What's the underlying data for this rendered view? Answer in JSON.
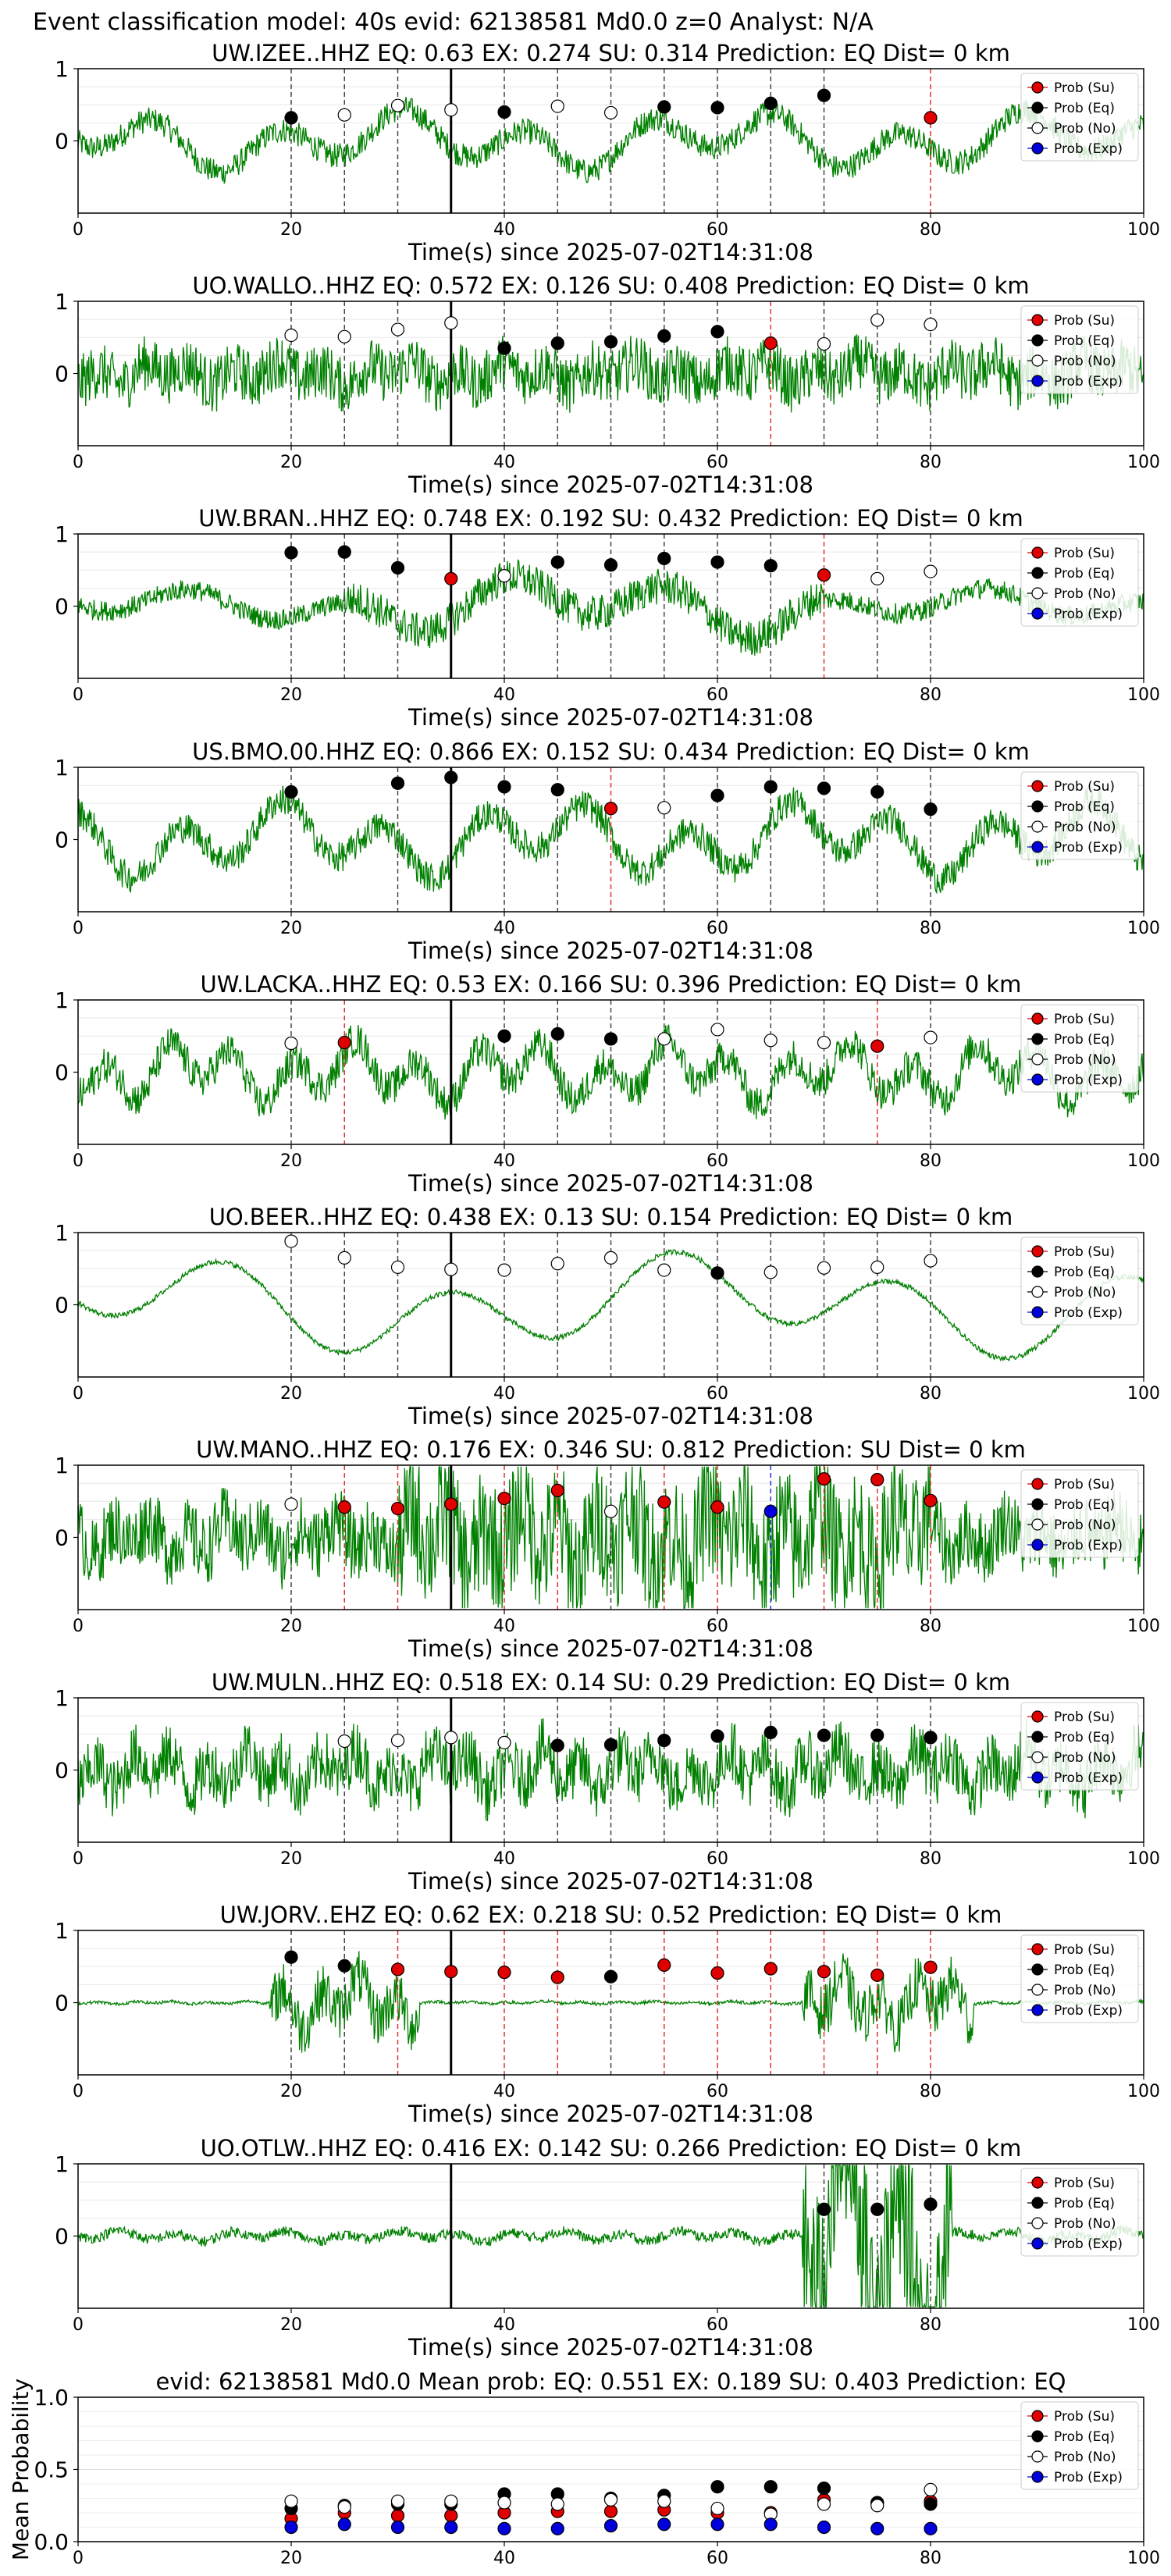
{
  "figure_title": "Event classification model: 40s evid: 62138581 Md0.0 z=0 Analyst: N/A",
  "shared": {
    "xlabel": "Time(s) since 2025-07-02T14:31:08",
    "xticks": [
      0,
      20,
      40,
      60,
      80,
      100
    ],
    "yticks": [
      0,
      1
    ],
    "legend": [
      "Prob (Su)",
      "Prob (Eq)",
      "Prob (No)",
      "Prob (Exp)"
    ],
    "colors": {
      "su": "#e00000",
      "eq": "#000000",
      "no": "#ffffff",
      "exp": "#0000dd",
      "trace": "#008000"
    }
  },
  "chart_data": [
    {
      "type": "line",
      "title": "UW.IZEE..HHZ   EQ: 0.63  EX: 0.274  SU: 0.314    Prediction: EQ    Dist= 0 km",
      "xlim": [
        0,
        100
      ],
      "ylim": [
        -1,
        1
      ],
      "pick": 35,
      "probs": [
        {
          "x": 20,
          "y": 0.32,
          "c": "eq"
        },
        {
          "x": 25,
          "y": 0.36,
          "c": "no"
        },
        {
          "x": 30,
          "y": 0.49,
          "c": "no"
        },
        {
          "x": 35,
          "y": 0.43,
          "c": "no"
        },
        {
          "x": 40,
          "y": 0.4,
          "c": "eq"
        },
        {
          "x": 45,
          "y": 0.48,
          "c": "no"
        },
        {
          "x": 50,
          "y": 0.39,
          "c": "no"
        },
        {
          "x": 55,
          "y": 0.47,
          "c": "eq"
        },
        {
          "x": 60,
          "y": 0.46,
          "c": "eq"
        },
        {
          "x": 65,
          "y": 0.52,
          "c": "eq"
        },
        {
          "x": 70,
          "y": 0.63,
          "c": "eq"
        },
        {
          "x": 80,
          "y": 0.32,
          "c": "su"
        }
      ]
    },
    {
      "type": "line",
      "title": "UO.WALLO..HHZ   EQ: 0.572  EX: 0.126  SU: 0.408    Prediction: EQ    Dist= 0 km",
      "xlim": [
        0,
        100
      ],
      "ylim": [
        -1,
        1
      ],
      "pick": 35,
      "probs": [
        {
          "x": 20,
          "y": 0.53,
          "c": "no"
        },
        {
          "x": 25,
          "y": 0.51,
          "c": "no"
        },
        {
          "x": 30,
          "y": 0.61,
          "c": "no"
        },
        {
          "x": 35,
          "y": 0.7,
          "c": "no"
        },
        {
          "x": 40,
          "y": 0.35,
          "c": "eq"
        },
        {
          "x": 45,
          "y": 0.42,
          "c": "eq"
        },
        {
          "x": 50,
          "y": 0.44,
          "c": "eq"
        },
        {
          "x": 55,
          "y": 0.52,
          "c": "eq"
        },
        {
          "x": 60,
          "y": 0.58,
          "c": "eq"
        },
        {
          "x": 65,
          "y": 0.42,
          "c": "su"
        },
        {
          "x": 70,
          "y": 0.41,
          "c": "no"
        },
        {
          "x": 75,
          "y": 0.74,
          "c": "no"
        },
        {
          "x": 80,
          "y": 0.68,
          "c": "no"
        }
      ]
    },
    {
      "type": "line",
      "title": "UW.BRAN..HHZ   EQ: 0.748  EX: 0.192  SU: 0.432    Prediction: EQ    Dist= 0 km",
      "xlim": [
        0,
        100
      ],
      "ylim": [
        -1,
        1
      ],
      "pick": 35,
      "probs": [
        {
          "x": 20,
          "y": 0.74,
          "c": "eq"
        },
        {
          "x": 25,
          "y": 0.75,
          "c": "eq"
        },
        {
          "x": 30,
          "y": 0.53,
          "c": "eq"
        },
        {
          "x": 35,
          "y": 0.38,
          "c": "su"
        },
        {
          "x": 40,
          "y": 0.42,
          "c": "no"
        },
        {
          "x": 45,
          "y": 0.61,
          "c": "eq"
        },
        {
          "x": 50,
          "y": 0.57,
          "c": "eq"
        },
        {
          "x": 55,
          "y": 0.66,
          "c": "eq"
        },
        {
          "x": 60,
          "y": 0.61,
          "c": "eq"
        },
        {
          "x": 65,
          "y": 0.56,
          "c": "eq"
        },
        {
          "x": 70,
          "y": 0.43,
          "c": "su"
        },
        {
          "x": 75,
          "y": 0.38,
          "c": "no"
        },
        {
          "x": 80,
          "y": 0.48,
          "c": "no"
        }
      ]
    },
    {
      "type": "line",
      "title": "US.BMO.00.HHZ   EQ: 0.866  EX: 0.152  SU: 0.434    Prediction: EQ    Dist= 0 km",
      "xlim": [
        0,
        100
      ],
      "ylim": [
        -1,
        1
      ],
      "pick": 35,
      "probs": [
        {
          "x": 20,
          "y": 0.66,
          "c": "eq"
        },
        {
          "x": 30,
          "y": 0.78,
          "c": "eq"
        },
        {
          "x": 35,
          "y": 0.86,
          "c": "eq"
        },
        {
          "x": 40,
          "y": 0.73,
          "c": "eq"
        },
        {
          "x": 45,
          "y": 0.69,
          "c": "eq"
        },
        {
          "x": 50,
          "y": 0.43,
          "c": "su"
        },
        {
          "x": 55,
          "y": 0.44,
          "c": "no"
        },
        {
          "x": 60,
          "y": 0.61,
          "c": "eq"
        },
        {
          "x": 65,
          "y": 0.73,
          "c": "eq"
        },
        {
          "x": 70,
          "y": 0.71,
          "c": "eq"
        },
        {
          "x": 75,
          "y": 0.66,
          "c": "eq"
        },
        {
          "x": 80,
          "y": 0.42,
          "c": "eq"
        }
      ]
    },
    {
      "type": "line",
      "title": "UW.LACKA..HHZ   EQ: 0.53  EX: 0.166  SU: 0.396    Prediction: EQ    Dist= 0 km",
      "xlim": [
        0,
        100
      ],
      "ylim": [
        -1,
        1
      ],
      "pick": 35,
      "probs": [
        {
          "x": 20,
          "y": 0.4,
          "c": "no"
        },
        {
          "x": 25,
          "y": 0.41,
          "c": "su"
        },
        {
          "x": 40,
          "y": 0.5,
          "c": "eq"
        },
        {
          "x": 45,
          "y": 0.53,
          "c": "eq"
        },
        {
          "x": 50,
          "y": 0.46,
          "c": "eq"
        },
        {
          "x": 55,
          "y": 0.46,
          "c": "no"
        },
        {
          "x": 60,
          "y": 0.59,
          "c": "no"
        },
        {
          "x": 65,
          "y": 0.44,
          "c": "no"
        },
        {
          "x": 70,
          "y": 0.41,
          "c": "no"
        },
        {
          "x": 75,
          "y": 0.36,
          "c": "su"
        },
        {
          "x": 80,
          "y": 0.48,
          "c": "no"
        }
      ]
    },
    {
      "type": "line",
      "title": "UO.BEER..HHZ   EQ: 0.438  EX: 0.13  SU: 0.154    Prediction: EQ    Dist= 0 km",
      "xlim": [
        0,
        100
      ],
      "ylim": [
        -1,
        1
      ],
      "pick": 35,
      "probs": [
        {
          "x": 20,
          "y": 0.88,
          "c": "no"
        },
        {
          "x": 25,
          "y": 0.65,
          "c": "no"
        },
        {
          "x": 30,
          "y": 0.52,
          "c": "no"
        },
        {
          "x": 35,
          "y": 0.49,
          "c": "no"
        },
        {
          "x": 40,
          "y": 0.48,
          "c": "no"
        },
        {
          "x": 45,
          "y": 0.57,
          "c": "no"
        },
        {
          "x": 50,
          "y": 0.65,
          "c": "no"
        },
        {
          "x": 55,
          "y": 0.48,
          "c": "no"
        },
        {
          "x": 60,
          "y": 0.44,
          "c": "eq"
        },
        {
          "x": 65,
          "y": 0.45,
          "c": "no"
        },
        {
          "x": 70,
          "y": 0.51,
          "c": "no"
        },
        {
          "x": 75,
          "y": 0.52,
          "c": "no"
        },
        {
          "x": 80,
          "y": 0.61,
          "c": "no"
        }
      ]
    },
    {
      "type": "line",
      "title": "UW.MANO..HHZ   EQ: 0.176  EX: 0.346  SU: 0.812    Prediction: SU    Dist= 0 km",
      "xlim": [
        0,
        100
      ],
      "ylim": [
        -1,
        1
      ],
      "pick": 35,
      "probs": [
        {
          "x": 20,
          "y": 0.46,
          "c": "no"
        },
        {
          "x": 25,
          "y": 0.42,
          "c": "su"
        },
        {
          "x": 30,
          "y": 0.4,
          "c": "su"
        },
        {
          "x": 35,
          "y": 0.46,
          "c": "su"
        },
        {
          "x": 40,
          "y": 0.54,
          "c": "su"
        },
        {
          "x": 45,
          "y": 0.65,
          "c": "su"
        },
        {
          "x": 50,
          "y": 0.36,
          "c": "no"
        },
        {
          "x": 55,
          "y": 0.49,
          "c": "su"
        },
        {
          "x": 60,
          "y": 0.42,
          "c": "su"
        },
        {
          "x": 65,
          "y": 0.36,
          "c": "exp"
        },
        {
          "x": 70,
          "y": 0.81,
          "c": "su"
        },
        {
          "x": 75,
          "y": 0.8,
          "c": "su"
        },
        {
          "x": 80,
          "y": 0.51,
          "c": "su"
        }
      ]
    },
    {
      "type": "line",
      "title": "UW.MULN..HHZ   EQ: 0.518  EX: 0.14  SU: 0.29    Prediction: EQ    Dist= 0 km",
      "xlim": [
        0,
        100
      ],
      "ylim": [
        -1,
        1
      ],
      "pick": 35,
      "probs": [
        {
          "x": 25,
          "y": 0.4,
          "c": "no"
        },
        {
          "x": 30,
          "y": 0.41,
          "c": "no"
        },
        {
          "x": 35,
          "y": 0.45,
          "c": "no"
        },
        {
          "x": 40,
          "y": 0.38,
          "c": "no"
        },
        {
          "x": 45,
          "y": 0.34,
          "c": "eq"
        },
        {
          "x": 50,
          "y": 0.35,
          "c": "eq"
        },
        {
          "x": 55,
          "y": 0.41,
          "c": "eq"
        },
        {
          "x": 60,
          "y": 0.47,
          "c": "eq"
        },
        {
          "x": 65,
          "y": 0.52,
          "c": "eq"
        },
        {
          "x": 70,
          "y": 0.48,
          "c": "eq"
        },
        {
          "x": 75,
          "y": 0.48,
          "c": "eq"
        },
        {
          "x": 80,
          "y": 0.45,
          "c": "eq"
        }
      ]
    },
    {
      "type": "line",
      "title": "UW.JORV..EHZ   EQ: 0.62  EX: 0.218  SU: 0.52    Prediction: EQ    Dist= 0 km",
      "xlim": [
        0,
        100
      ],
      "ylim": [
        -1,
        1
      ],
      "pick": 35,
      "probs": [
        {
          "x": 20,
          "y": 0.63,
          "c": "eq"
        },
        {
          "x": 25,
          "y": 0.51,
          "c": "eq"
        },
        {
          "x": 30,
          "y": 0.46,
          "c": "su"
        },
        {
          "x": 35,
          "y": 0.43,
          "c": "su"
        },
        {
          "x": 40,
          "y": 0.42,
          "c": "su"
        },
        {
          "x": 45,
          "y": 0.35,
          "c": "su"
        },
        {
          "x": 50,
          "y": 0.36,
          "c": "eq"
        },
        {
          "x": 55,
          "y": 0.52,
          "c": "su"
        },
        {
          "x": 60,
          "y": 0.41,
          "c": "su"
        },
        {
          "x": 65,
          "y": 0.47,
          "c": "su"
        },
        {
          "x": 70,
          "y": 0.43,
          "c": "su"
        },
        {
          "x": 75,
          "y": 0.38,
          "c": "su"
        },
        {
          "x": 80,
          "y": 0.49,
          "c": "su"
        }
      ]
    },
    {
      "type": "line",
      "title": "UO.OTLW..HHZ   EQ: 0.416  EX: 0.142  SU: 0.266    Prediction: EQ    Dist= 0 km",
      "xlim": [
        0,
        100
      ],
      "ylim": [
        -1,
        1
      ],
      "pick": 35,
      "probs": [
        {
          "x": 70,
          "y": 0.37,
          "c": "eq"
        },
        {
          "x": 75,
          "y": 0.37,
          "c": "eq"
        },
        {
          "x": 80,
          "y": 0.44,
          "c": "eq"
        }
      ]
    },
    {
      "type": "scatter",
      "title": "evid: 62138581  Md0.0   Mean prob:   EQ: 0.551  EX: 0.189  SU: 0.403   Prediction: EQ",
      "ylabel": "Mean Probability",
      "xlim": [
        0,
        100
      ],
      "ylim": [
        0,
        1
      ],
      "yticks": [
        "0.0",
        "0.5",
        "1.0"
      ],
      "series": [
        {
          "name": "Prob (Su)",
          "values": [
            [
              20,
              0.16
            ],
            [
              25,
              0.2
            ],
            [
              30,
              0.18
            ],
            [
              35,
              0.18
            ],
            [
              40,
              0.2
            ],
            [
              45,
              0.21
            ],
            [
              50,
              0.21
            ],
            [
              55,
              0.22
            ],
            [
              60,
              0.2
            ],
            [
              65,
              0.2
            ],
            [
              70,
              0.29
            ],
            [
              75,
              0.27
            ],
            [
              80,
              0.28
            ]
          ]
        },
        {
          "name": "Prob (Eq)",
          "values": [
            [
              20,
              0.23
            ],
            [
              25,
              0.25
            ],
            [
              30,
              0.26
            ],
            [
              35,
              0.26
            ],
            [
              40,
              0.33
            ],
            [
              45,
              0.33
            ],
            [
              50,
              0.3
            ],
            [
              55,
              0.32
            ],
            [
              60,
              0.38
            ],
            [
              65,
              0.38
            ],
            [
              70,
              0.37
            ],
            [
              75,
              0.27
            ],
            [
              80,
              0.26
            ]
          ]
        },
        {
          "name": "Prob (No)",
          "values": [
            [
              20,
              0.28
            ],
            [
              25,
              0.24
            ],
            [
              30,
              0.28
            ],
            [
              35,
              0.28
            ],
            [
              40,
              0.27
            ],
            [
              45,
              0.26
            ],
            [
              50,
              0.29
            ],
            [
              55,
              0.28
            ],
            [
              60,
              0.23
            ],
            [
              65,
              0.19
            ],
            [
              70,
              0.26
            ],
            [
              75,
              0.25
            ],
            [
              80,
              0.36
            ]
          ]
        },
        {
          "name": "Prob (Exp)",
          "values": [
            [
              20,
              0.1
            ],
            [
              25,
              0.12
            ],
            [
              30,
              0.1
            ],
            [
              35,
              0.1
            ],
            [
              40,
              0.09
            ],
            [
              45,
              0.09
            ],
            [
              50,
              0.11
            ],
            [
              55,
              0.12
            ],
            [
              60,
              0.12
            ],
            [
              65,
              0.12
            ],
            [
              70,
              0.1
            ],
            [
              75,
              0.09
            ],
            [
              80,
              0.09
            ]
          ]
        }
      ]
    }
  ]
}
